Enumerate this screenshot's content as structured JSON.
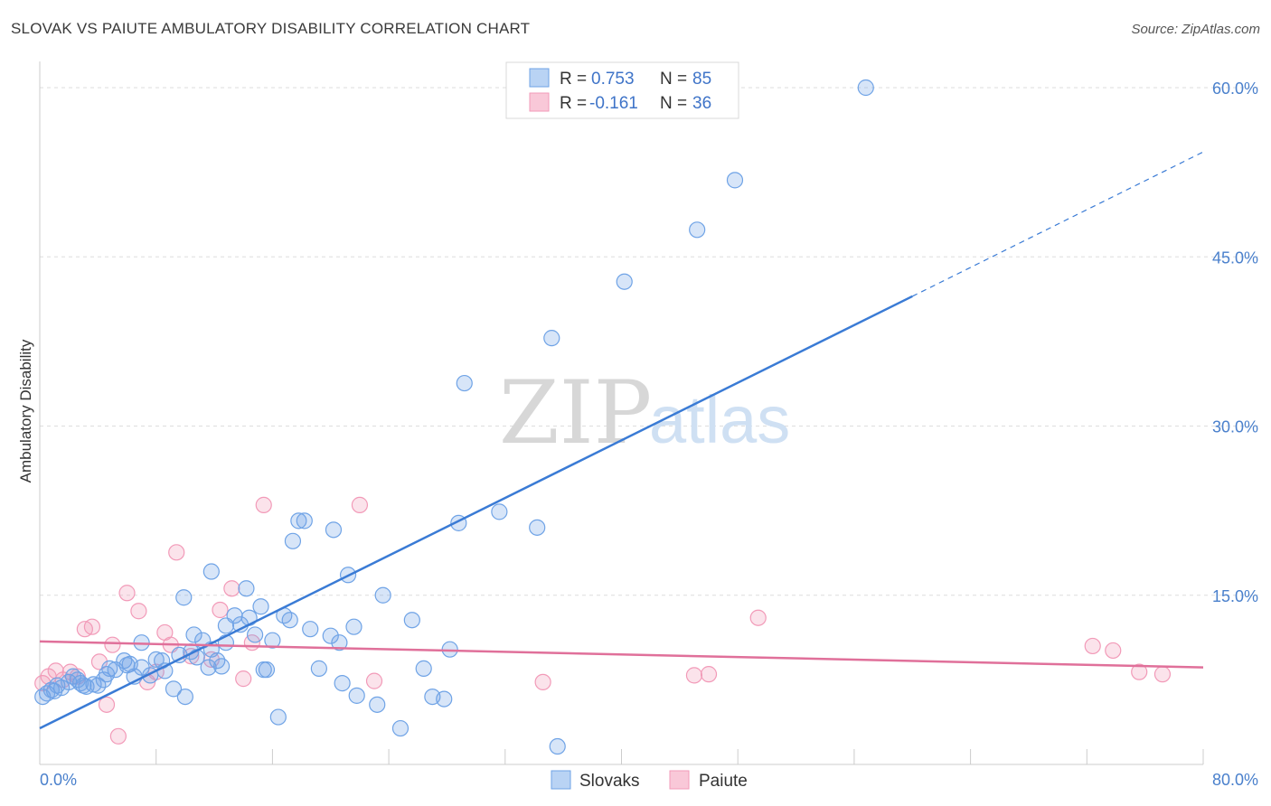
{
  "header": {
    "title": "SLOVAK VS PAIUTE AMBULATORY DISABILITY CORRELATION CHART",
    "source": "Source: ZipAtlas.com"
  },
  "watermark": {
    "part1": "ZIP",
    "part2": "atlas"
  },
  "legend": {
    "r_label": "R =",
    "n_label": "N =",
    "entries": [
      {
        "r": "0.753",
        "n": "85"
      },
      {
        "r": "-0.161",
        "n": "36"
      }
    ]
  },
  "chart_data": {
    "type": "scatter",
    "title": "SLOVAK VS PAIUTE AMBULATORY DISABILITY CORRELATION CHART",
    "xlabel": "",
    "ylabel": "Ambulatory Disability",
    "xlim": [
      0,
      80
    ],
    "ylim": [
      0,
      60
    ],
    "x_tick_labels": [
      "0.0%",
      "80.0%"
    ],
    "y_ticks": [
      15,
      30,
      45,
      60
    ],
    "y_tick_labels": [
      "15.0%",
      "30.0%",
      "45.0%",
      "60.0%"
    ],
    "legend_position": "top-center",
    "colors": {
      "slovaks": "#6fa3e6",
      "paiute": "#f29ab8",
      "slovaks_line": "#3a7bd5",
      "paiute_line": "#e0709a"
    },
    "series": [
      {
        "name": "Slovaks",
        "r": 0.753,
        "n": 85,
        "trend": {
          "x0": 0,
          "y0": 3.2,
          "x1": 60,
          "y1": 41.5,
          "dashed_to_x": 80,
          "dashed_to_y": 54.3
        },
        "points": [
          [
            0.2,
            6.0
          ],
          [
            0.5,
            6.3
          ],
          [
            0.8,
            6.6
          ],
          [
            1.2,
            7.0
          ],
          [
            1.5,
            6.8
          ],
          [
            2.0,
            7.3
          ],
          [
            2.3,
            7.8
          ],
          [
            2.8,
            7.2
          ],
          [
            3.2,
            6.9
          ],
          [
            3.7,
            7.1
          ],
          [
            4.0,
            7.0
          ],
          [
            4.4,
            7.5
          ],
          [
            4.8,
            8.5
          ],
          [
            5.2,
            8.4
          ],
          [
            5.8,
            9.2
          ],
          [
            6.2,
            8.9
          ],
          [
            6.5,
            7.8
          ],
          [
            7.0,
            8.6
          ],
          [
            7.6,
            7.9
          ],
          [
            8.0,
            9.3
          ],
          [
            8.4,
            9.2
          ],
          [
            8.6,
            8.3
          ],
          [
            7.0,
            10.8
          ],
          [
            9.2,
            6.7
          ],
          [
            9.6,
            9.7
          ],
          [
            10.0,
            6.0
          ],
          [
            10.6,
            11.5
          ],
          [
            10.8,
            9.5
          ],
          [
            11.2,
            11.0
          ],
          [
            11.6,
            8.6
          ],
          [
            11.8,
            10.2
          ],
          [
            12.2,
            9.2
          ],
          [
            12.5,
            8.7
          ],
          [
            12.8,
            10.8
          ],
          [
            13.4,
            13.2
          ],
          [
            13.8,
            12.4
          ],
          [
            14.4,
            13.0
          ],
          [
            14.8,
            11.5
          ],
          [
            15.2,
            14.0
          ],
          [
            15.4,
            8.4
          ],
          [
            15.6,
            8.4
          ],
          [
            16.0,
            11.0
          ],
          [
            16.4,
            4.2
          ],
          [
            16.8,
            13.2
          ],
          [
            17.2,
            12.8
          ],
          [
            17.4,
            19.8
          ],
          [
            17.8,
            21.6
          ],
          [
            18.2,
            21.6
          ],
          [
            19.2,
            8.5
          ],
          [
            20.0,
            11.4
          ],
          [
            20.2,
            20.8
          ],
          [
            20.6,
            10.8
          ],
          [
            20.8,
            7.2
          ],
          [
            21.2,
            16.8
          ],
          [
            21.6,
            12.2
          ],
          [
            21.8,
            6.1
          ],
          [
            23.2,
            5.3
          ],
          [
            23.6,
            15.0
          ],
          [
            24.8,
            3.2
          ],
          [
            25.6,
            12.8
          ],
          [
            26.4,
            8.5
          ],
          [
            27.0,
            6.0
          ],
          [
            27.8,
            5.8
          ],
          [
            28.2,
            10.2
          ],
          [
            28.8,
            21.4
          ],
          [
            29.2,
            33.8
          ],
          [
            31.6,
            22.4
          ],
          [
            34.2,
            21.0
          ],
          [
            35.2,
            37.8
          ],
          [
            35.6,
            1.6
          ],
          [
            40.2,
            42.8
          ],
          [
            45.2,
            47.4
          ],
          [
            47.8,
            51.8
          ],
          [
            56.8,
            60.0
          ],
          [
            9.9,
            14.8
          ],
          [
            11.8,
            17.1
          ],
          [
            3.0,
            7.0
          ],
          [
            4.6,
            8.0
          ],
          [
            1.0,
            6.5
          ],
          [
            14.2,
            15.6
          ],
          [
            6.0,
            8.8
          ],
          [
            2.6,
            7.5
          ],
          [
            10.4,
            10.0
          ],
          [
            18.6,
            12.0
          ],
          [
            12.8,
            12.3
          ]
        ]
      },
      {
        "name": "Paiute",
        "r": -0.161,
        "n": 36,
        "trend": {
          "x0": 0,
          "y0": 10.9,
          "x1": 80,
          "y1": 8.6
        },
        "points": [
          [
            0.2,
            7.2
          ],
          [
            0.6,
            7.8
          ],
          [
            1.1,
            8.3
          ],
          [
            1.6,
            7.5
          ],
          [
            2.1,
            8.2
          ],
          [
            2.6,
            7.8
          ],
          [
            3.1,
            12.0
          ],
          [
            3.6,
            12.2
          ],
          [
            4.1,
            9.1
          ],
          [
            4.6,
            5.3
          ],
          [
            5.0,
            10.6
          ],
          [
            5.4,
            2.5
          ],
          [
            6.0,
            15.2
          ],
          [
            6.8,
            13.6
          ],
          [
            7.4,
            7.3
          ],
          [
            8.0,
            8.2
          ],
          [
            8.6,
            11.7
          ],
          [
            9.0,
            10.6
          ],
          [
            9.4,
            18.8
          ],
          [
            10.4,
            9.6
          ],
          [
            11.8,
            9.3
          ],
          [
            12.4,
            13.7
          ],
          [
            13.2,
            15.6
          ],
          [
            14.0,
            7.6
          ],
          [
            14.6,
            10.8
          ],
          [
            15.4,
            23.0
          ],
          [
            22.0,
            23.0
          ],
          [
            23.0,
            7.4
          ],
          [
            34.6,
            7.3
          ],
          [
            45.0,
            7.9
          ],
          [
            46.0,
            8.0
          ],
          [
            49.4,
            13.0
          ],
          [
            72.4,
            10.5
          ],
          [
            73.8,
            10.1
          ],
          [
            75.6,
            8.2
          ],
          [
            77.2,
            8.0
          ]
        ]
      }
    ],
    "extra_points_note": ""
  },
  "bottom_legend": {
    "items": [
      "Slovaks",
      "Paiute"
    ]
  }
}
